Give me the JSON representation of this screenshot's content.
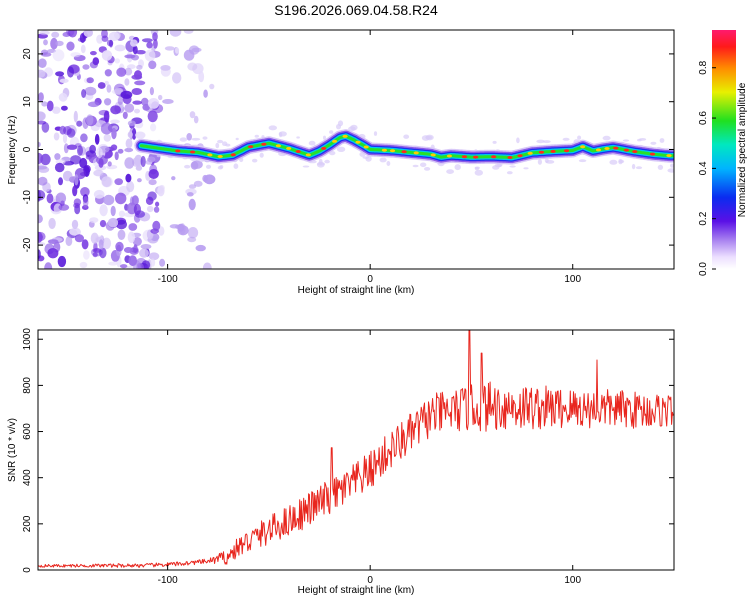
{
  "title": "S196.2026.069.04.58.R24",
  "chart_data": [
    {
      "type": "heatmap",
      "xlabel": "Height of straight line (km)",
      "ylabel": "Frequency (Hz)",
      "xlim": [
        -164,
        150
      ],
      "ylim": [
        -25,
        25
      ],
      "xticks": [
        -100,
        0,
        100
      ],
      "yticks": [
        -20,
        -10,
        0,
        10,
        20
      ],
      "colorbar_label": "Normalized spectral amplitude",
      "colorbar_ticks": [
        "0.0",
        "0.2",
        "0.4",
        "0.6",
        "0.8"
      ],
      "colorbar_range": [
        0,
        0.95
      ],
      "trace": {
        "x": [
          -113,
          -105,
          -95,
          -85,
          -75,
          -68,
          -60,
          -50,
          -40,
          -30,
          -25,
          -20,
          -15,
          -12,
          -8,
          -3,
          0,
          10,
          20,
          30,
          35,
          40,
          50,
          60,
          70,
          80,
          90,
          100,
          105,
          110,
          115,
          120,
          130,
          140,
          148
        ],
        "y": [
          0.8,
          0.3,
          -0.3,
          -0.6,
          -1.5,
          -1.2,
          0.5,
          1.3,
          0.2,
          -1.2,
          -0.3,
          1.0,
          2.5,
          2.8,
          2.0,
          0.8,
          0.0,
          -0.2,
          -0.6,
          -1.0,
          -1.6,
          -1.3,
          -1.6,
          -1.5,
          -1.7,
          -0.7,
          -0.4,
          -0.2,
          0.6,
          -0.3,
          0.1,
          0.4,
          -0.4,
          -1.0,
          -1.3
        ]
      },
      "noise_region": [
        -164,
        -78
      ]
    },
    {
      "type": "line",
      "xlabel": "Height of straight line (km)",
      "ylabel": "SNR (10 * v/v)",
      "xlim": [
        -164,
        150
      ],
      "ylim": [
        0,
        1040
      ],
      "xticks": [
        -100,
        0,
        100
      ],
      "yticks": [
        0,
        200,
        400,
        600,
        800,
        1000
      ],
      "color": "#e8261e",
      "envelope": {
        "x": [
          -164,
          -110,
          -95,
          -80,
          -70,
          -65,
          -55,
          -40,
          -25,
          -10,
          0,
          10,
          20,
          30,
          45,
          60,
          80,
          100,
          120,
          140,
          150
        ],
        "y": [
          18,
          20,
          26,
          38,
          58,
          100,
          150,
          215,
          290,
          365,
          430,
          520,
          590,
          670,
          695,
          710,
          705,
          700,
          700,
          690,
          695
        ]
      },
      "noise_amplitude": {
        "x": [
          -164,
          -80,
          -70,
          -60,
          -40,
          -20,
          0,
          20,
          40,
          60,
          100,
          150
        ],
        "y": [
          6,
          10,
          35,
          55,
          70,
          80,
          85,
          90,
          95,
          110,
          90,
          75
        ]
      },
      "peaks": [
        {
          "x": 49,
          "y": 1040
        },
        {
          "x": -19,
          "y": 530
        },
        {
          "x": 55,
          "y": 940
        },
        {
          "x": 112,
          "y": 910
        }
      ]
    }
  ]
}
